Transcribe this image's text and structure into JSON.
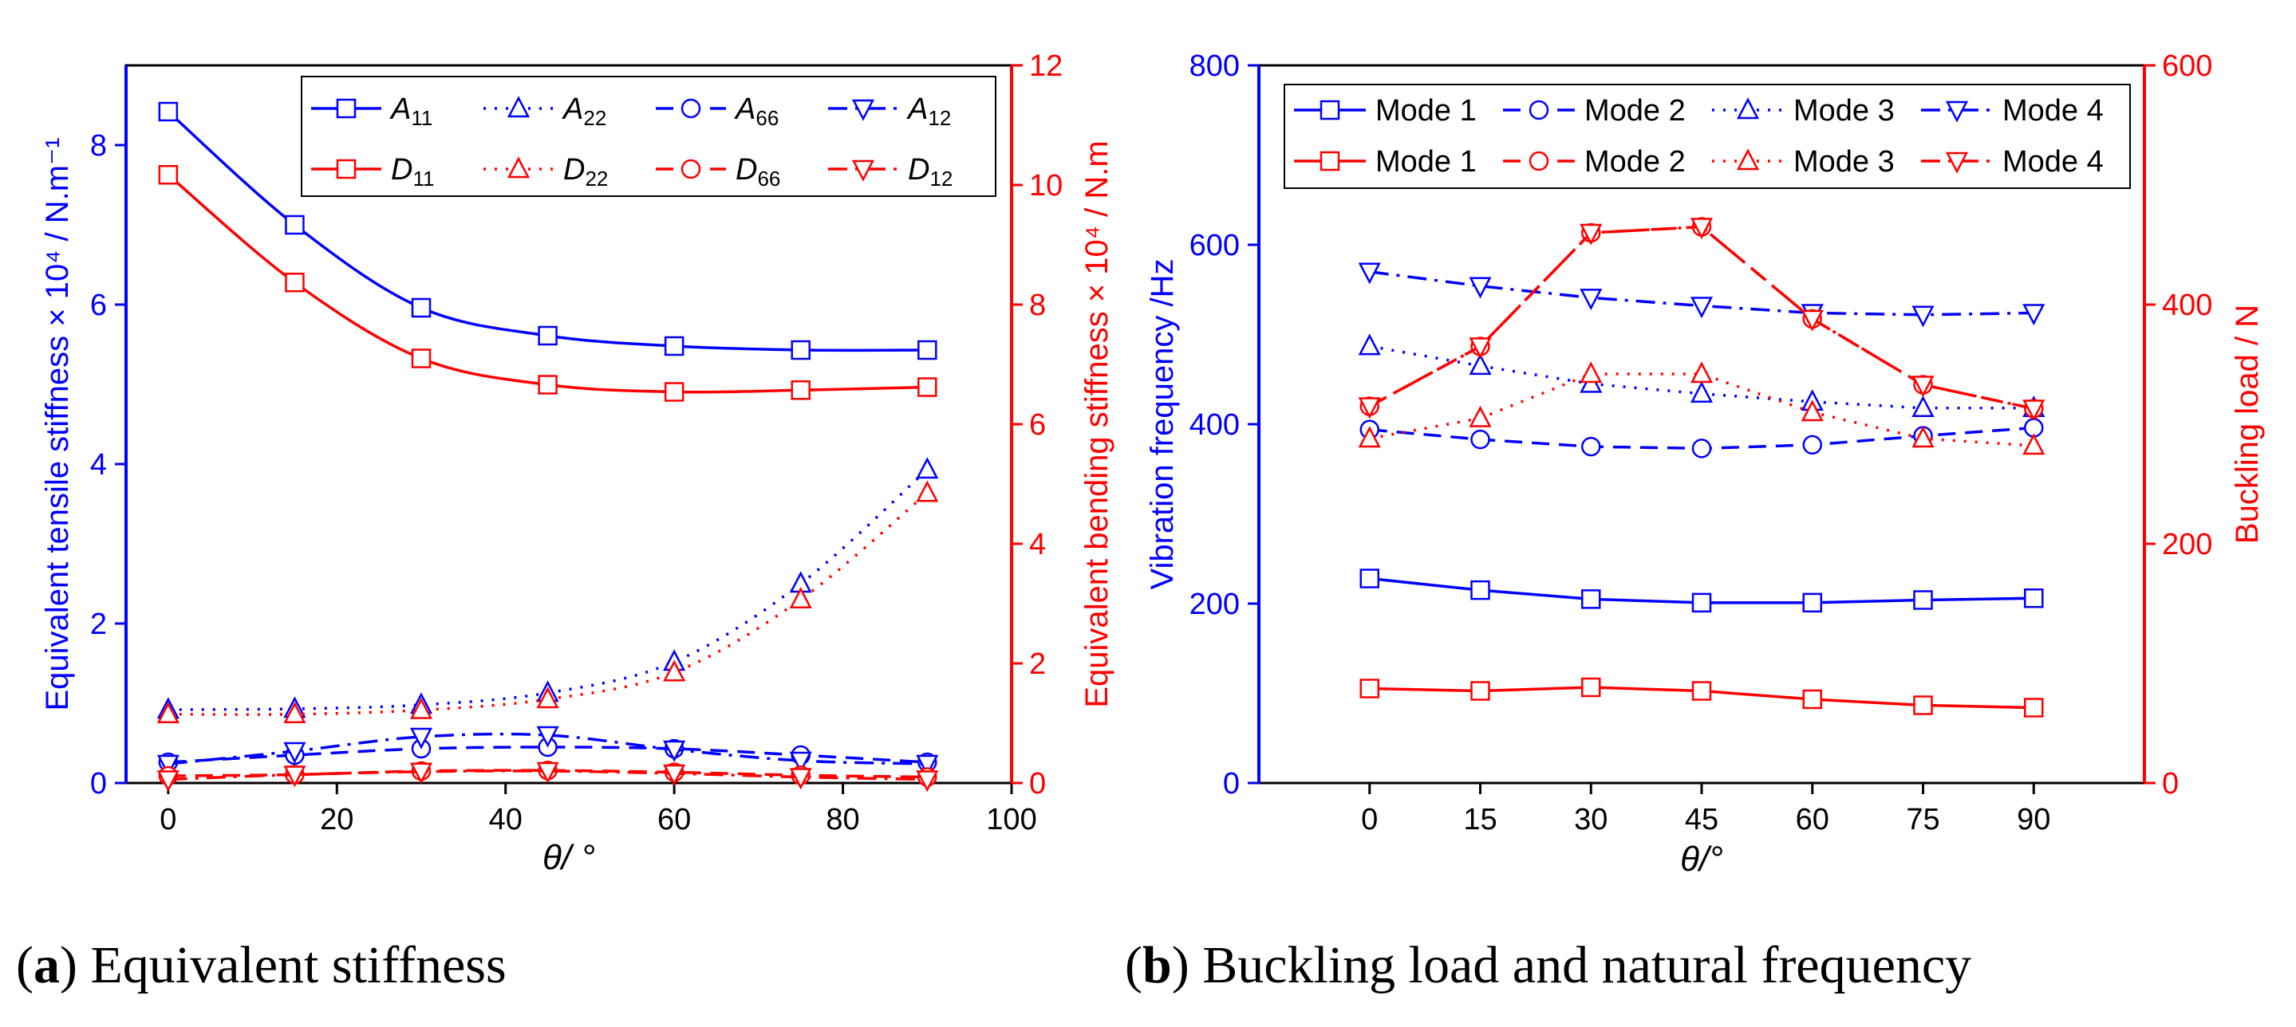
{
  "chart_data": [
    {
      "type": "line",
      "id": "a",
      "caption_letter": "a",
      "caption_text": "Equivalent stiffness",
      "xlabel": "θ/ °",
      "xlim": [
        -5,
        100
      ],
      "xticks": [
        0,
        20,
        40,
        60,
        80,
        100
      ],
      "left_axis": {
        "label": "Equivalent tensile stiffness × 10⁴ / N.m⁻¹",
        "ylim": [
          0,
          9
        ],
        "ticks": [
          0,
          2,
          4,
          6,
          8
        ],
        "color": "#0000ff"
      },
      "right_axis": {
        "label": "Equivalent bending stiffness × 10⁴ / N.m",
        "ylim": [
          0,
          12
        ],
        "ticks": [
          0,
          2,
          4,
          6,
          8,
          10,
          12
        ],
        "color": "#ff0000"
      },
      "x": [
        0,
        15,
        30,
        45,
        60,
        75,
        90
      ],
      "series": [
        {
          "name": "A",
          "sub": "11",
          "axis": "left",
          "color": "#0000ff",
          "dash": "solid",
          "marker": "square",
          "values": [
            8.42,
            7.0,
            5.96,
            5.61,
            5.48,
            5.43,
            5.43
          ]
        },
        {
          "name": "A",
          "sub": "22",
          "axis": "left",
          "color": "#0000ff",
          "dash": "dot",
          "marker": "triangle-up",
          "values": [
            0.92,
            0.93,
            0.98,
            1.13,
            1.52,
            2.5,
            3.93
          ]
        },
        {
          "name": "A",
          "sub": "66",
          "axis": "left",
          "color": "#0000ff",
          "dash": "dash",
          "marker": "circle",
          "values": [
            0.26,
            0.35,
            0.43,
            0.45,
            0.43,
            0.35,
            0.26
          ]
        },
        {
          "name": "A",
          "sub": "12",
          "axis": "left",
          "color": "#0000ff",
          "dash": "dashdot",
          "marker": "triangle-down",
          "values": [
            0.24,
            0.4,
            0.58,
            0.6,
            0.42,
            0.28,
            0.24
          ]
        },
        {
          "name": "D",
          "sub": "11",
          "axis": "right",
          "color": "#ff0000",
          "dash": "solid",
          "marker": "square",
          "values": [
            10.17,
            8.37,
            7.1,
            6.66,
            6.54,
            6.57,
            6.62
          ]
        },
        {
          "name": "D",
          "sub": "22",
          "axis": "right",
          "color": "#ff0000",
          "dash": "dot",
          "marker": "triangle-up",
          "values": [
            1.15,
            1.15,
            1.22,
            1.4,
            1.85,
            3.07,
            4.85
          ]
        },
        {
          "name": "D",
          "sub": "66",
          "axis": "right",
          "color": "#ff0000",
          "dash": "dash",
          "marker": "circle",
          "values": [
            0.12,
            0.14,
            0.2,
            0.21,
            0.18,
            0.13,
            0.1
          ]
        },
        {
          "name": "D",
          "sub": "12",
          "axis": "right",
          "color": "#ff0000",
          "dash": "dashdot",
          "marker": "triangle-down",
          "values": [
            0.06,
            0.14,
            0.19,
            0.2,
            0.16,
            0.1,
            0.06
          ]
        }
      ]
    },
    {
      "type": "line",
      "id": "b",
      "caption_letter": "b",
      "caption_text": "Buckling load and natural frequency",
      "xlabel": "θ/°",
      "xlim": [
        -15,
        105
      ],
      "xticks": [
        0,
        15,
        30,
        45,
        60,
        75,
        90
      ],
      "left_axis": {
        "label": "Vibration frequency /Hz",
        "ylim": [
          0,
          800
        ],
        "ticks": [
          0,
          200,
          400,
          600,
          800
        ],
        "color": "#0000ff"
      },
      "right_axis": {
        "label": "Buckling load / N",
        "ylim": [
          0,
          600
        ],
        "ticks": [
          0,
          200,
          400,
          600
        ],
        "color": "#ff0000"
      },
      "x": [
        0,
        15,
        30,
        45,
        60,
        75,
        90
      ],
      "series": [
        {
          "name": "Mode 1",
          "axis": "left",
          "color": "#0000ff",
          "dash": "solid",
          "marker": "square",
          "values": [
            228,
            215,
            205,
            201,
            201,
            204,
            206
          ]
        },
        {
          "name": "Mode 2",
          "axis": "left",
          "color": "#0000ff",
          "dash": "dash",
          "marker": "circle",
          "values": [
            394,
            383,
            375,
            373,
            377,
            387,
            396
          ]
        },
        {
          "name": "Mode 3",
          "axis": "left",
          "color": "#0000ff",
          "dash": "dot",
          "marker": "triangle-up",
          "values": [
            487,
            465,
            445,
            434,
            425,
            418,
            418
          ]
        },
        {
          "name": "Mode 4",
          "axis": "left",
          "color": "#0000ff",
          "dash": "dashdot",
          "marker": "triangle-down",
          "values": [
            570,
            554,
            541,
            532,
            524,
            522,
            524
          ]
        },
        {
          "name": "Mode 1",
          "axis": "right",
          "color": "#ff0000",
          "dash": "solid",
          "marker": "square",
          "values": [
            79,
            77,
            80,
            77,
            70,
            65,
            63
          ]
        },
        {
          "name": "Mode 2",
          "axis": "right",
          "color": "#ff0000",
          "dash": "dash",
          "marker": "circle",
          "values": [
            315,
            365,
            460,
            465,
            388,
            333,
            313
          ]
        },
        {
          "name": "Mode 3",
          "axis": "right",
          "color": "#ff0000",
          "dash": "dot",
          "marker": "triangle-up",
          "values": [
            288,
            305,
            342,
            342,
            310,
            288,
            282
          ]
        },
        {
          "name": "Mode 4",
          "axis": "right",
          "color": "#ff0000",
          "dash": "dashdot",
          "marker": "triangle-down",
          "values": [
            315,
            365,
            460,
            465,
            388,
            333,
            313
          ]
        }
      ]
    }
  ]
}
